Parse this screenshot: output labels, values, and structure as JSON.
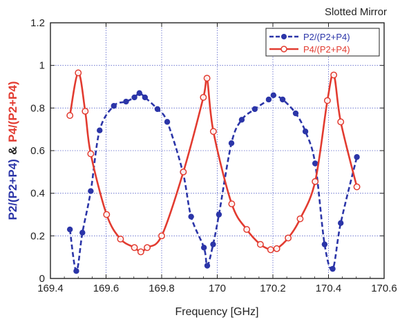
{
  "chart_data": {
    "type": "line",
    "title": "Slotted Mirror",
    "xlabel": "Frequency [GHz]",
    "ylabel_parts": [
      "P2/(P2+P4)",
      "&",
      "P4/(P2+P4)"
    ],
    "xlim": [
      169.4,
      170.6
    ],
    "ylim": [
      0,
      1.2
    ],
    "xticks": [
      "169.4",
      "169.6",
      "169.8",
      "170",
      "170.2",
      "170.4",
      "170.6"
    ],
    "yticks": [
      "0",
      "0.2",
      "0.4",
      "0.6",
      "0.8",
      "1",
      "1.2"
    ],
    "grid": true,
    "legend_position": "top-right",
    "series": [
      {
        "name": "P2/(P2+P4)",
        "color": "#2b35a8",
        "line_style": "dashed",
        "marker": "filled-circle",
        "x": [
          169.47,
          169.493,
          169.515,
          169.545,
          169.577,
          169.628,
          169.672,
          169.702,
          169.72,
          169.74,
          169.785,
          169.82,
          169.876,
          169.906,
          169.952,
          169.964,
          169.985,
          170.006,
          170.051,
          170.088,
          170.135,
          170.185,
          170.202,
          170.235,
          170.282,
          170.317,
          170.352,
          170.386,
          170.415,
          170.444,
          170.502
        ],
        "y": [
          0.23,
          0.035,
          0.215,
          0.41,
          0.695,
          0.81,
          0.83,
          0.85,
          0.87,
          0.85,
          0.795,
          0.735,
          0.5,
          0.29,
          0.145,
          0.06,
          0.16,
          0.3,
          0.635,
          0.745,
          0.795,
          0.84,
          0.86,
          0.84,
          0.775,
          0.69,
          0.54,
          0.16,
          0.045,
          0.26,
          0.57
        ]
      },
      {
        "name": "P4/(P2+P4)",
        "color": "#e23b30",
        "line_style": "solid",
        "marker": "open-circle",
        "x": [
          169.47,
          169.5,
          169.525,
          169.545,
          169.602,
          169.652,
          169.702,
          169.725,
          169.748,
          169.8,
          169.878,
          169.95,
          169.963,
          169.986,
          170.052,
          170.106,
          170.155,
          170.192,
          170.214,
          170.255,
          170.298,
          170.352,
          170.396,
          170.419,
          170.444,
          170.502
        ],
        "y": [
          0.765,
          0.965,
          0.785,
          0.585,
          0.3,
          0.185,
          0.145,
          0.125,
          0.145,
          0.2,
          0.5,
          0.85,
          0.94,
          0.69,
          0.35,
          0.23,
          0.16,
          0.135,
          0.14,
          0.19,
          0.28,
          0.455,
          0.835,
          0.955,
          0.735,
          0.43
        ]
      }
    ]
  }
}
